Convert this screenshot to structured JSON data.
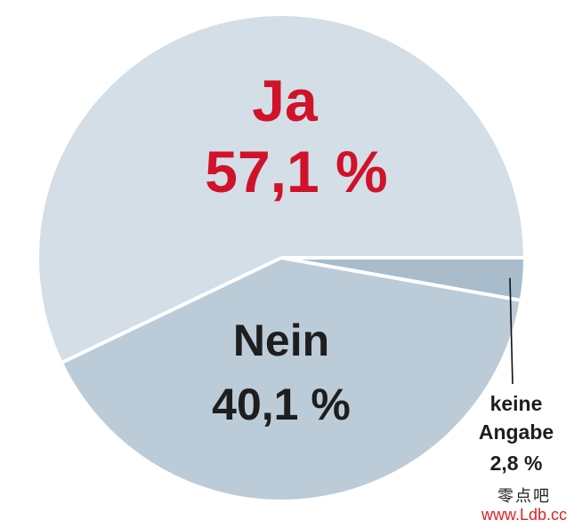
{
  "chart_data": {
    "type": "pie",
    "title": "",
    "slices": [
      {
        "label": "Ja",
        "value_text": "57,1 %",
        "value": 57.1,
        "color": "#d3dee6",
        "label_color": "#d0122a"
      },
      {
        "label": "Nein",
        "value_text": "40,1 %",
        "value": 40.1,
        "color": "#bccbd8",
        "label_color": "#1e1e1e"
      },
      {
        "label": "keine Angabe",
        "label_lines": [
          "keine",
          "Angabe"
        ],
        "value_text": "2,8 %",
        "value": 2.8,
        "color": "#a8bccb",
        "label_color": "#1e1e1e"
      }
    ],
    "start_direction": "right",
    "direction": "counterclockwise",
    "separator_color": "#ffffff"
  },
  "watermark": {
    "chinese": "零点吧",
    "url": "www.Ldb.cc",
    "url_color": "#e02020"
  }
}
